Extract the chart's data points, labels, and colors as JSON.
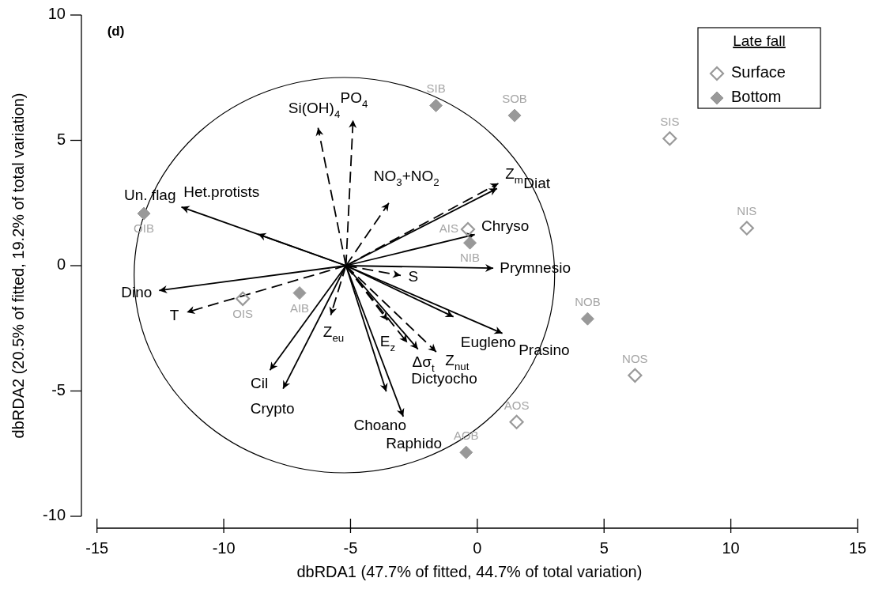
{
  "chart_data": {
    "type": "scatter",
    "title": "(d)",
    "xlabel": "dbRDA1 (47.7% of fitted, 44.7% of total variation)",
    "ylabel": "dbRDA2 (20.5% of fitted, 19.2% of total variation)",
    "xlim": [
      -15,
      15
    ],
    "ylim": [
      -10,
      10
    ],
    "xticks": [
      -15,
      -10,
      -5,
      0,
      5,
      10,
      15
    ],
    "yticks": [
      -10,
      -5,
      0,
      5,
      10
    ],
    "legend": "top right",
    "legend_title": "Late fall",
    "series": [
      {
        "name": "Surface",
        "marker": "diamond",
        "color": "#999999",
        "x": [
          7.59,
          10.63,
          -0.37,
          -9.25,
          6.22,
          1.55
        ],
        "values": [
          5.07,
          1.5,
          1.45,
          -1.32,
          -4.38,
          -6.24
        ],
        "value_labels": [
          "SIS",
          "NIS",
          "AIS",
          "OIS",
          "NOS",
          "AOS"
        ]
      },
      {
        "name": "Bottom",
        "marker": "diamond",
        "color": "#999999",
        "x": [
          -1.63,
          1.47,
          -13.15,
          -0.29,
          -7.01,
          4.35,
          -0.44
        ],
        "values": [
          6.39,
          5.99,
          2.08,
          0.91,
          -1.09,
          -2.12,
          -7.45
        ],
        "value_labels": [
          "SIB",
          "SOB",
          "OIB",
          "NIB",
          "AIB",
          "NOB",
          "AOB"
        ]
      },
      {
        "type": "line",
        "color": "#000000",
        "line_style": "solid",
        "x": [
          -5.18,
          -11.67
        ],
        "values": [
          0,
          2.34
        ]
      },
      {
        "type": "line",
        "color": "#000000",
        "line_style": "solid",
        "x": [
          -5.18,
          -8.65
        ],
        "values": [
          0,
          1.26
        ]
      },
      {
        "type": "line",
        "color": "#000000",
        "line_style": "dashed",
        "x": [
          -5.18,
          -6.28
        ],
        "values": [
          0,
          5.5
        ]
      },
      {
        "type": "line",
        "color": "#000000",
        "line_style": "dashed",
        "x": [
          -5.18,
          -4.9
        ],
        "values": [
          0,
          5.81
        ]
      },
      {
        "type": "line",
        "color": "#000000",
        "line_style": "dashed",
        "x": [
          -5.18,
          -3.49
        ],
        "values": [
          0,
          2.5
        ]
      },
      {
        "type": "line",
        "color": "#000000",
        "line_style": "dashed",
        "x": [
          -5.18,
          0.83
        ],
        "values": [
          0,
          3.28
        ]
      },
      {
        "type": "line",
        "color": "#000000",
        "line_style": "solid",
        "x": [
          -5.18,
          0.78
        ],
        "values": [
          0,
          3.08
        ]
      },
      {
        "type": "line",
        "color": "#000000",
        "line_style": "solid",
        "x": [
          -5.18,
          -0.1
        ],
        "values": [
          0,
          1.24
        ]
      },
      {
        "type": "line",
        "color": "#000000",
        "line_style": "solid",
        "x": [
          -5.18,
          0.63
        ],
        "values": [
          0,
          -0.1
        ]
      },
      {
        "type": "line",
        "color": "#000000",
        "line_style": "dashed",
        "x": [
          -5.18,
          -3.02
        ],
        "values": [
          0,
          -0.39
        ]
      },
      {
        "type": "line",
        "color": "#000000",
        "line_style": "solid",
        "x": [
          -5.18,
          -0.94
        ],
        "values": [
          0,
          -2.04
        ]
      },
      {
        "type": "line",
        "color": "#000000",
        "line_style": "solid",
        "x": [
          -5.18,
          0.99
        ],
        "values": [
          0,
          -2.7
        ]
      },
      {
        "type": "line",
        "color": "#000000",
        "line_style": "solid",
        "x": [
          -5.18,
          -12.55
        ],
        "values": [
          0,
          -0.99
        ]
      },
      {
        "type": "line",
        "color": "#000000",
        "line_style": "dashed",
        "x": [
          -5.18,
          -11.46
        ],
        "values": [
          0,
          -1.86
        ]
      },
      {
        "type": "line",
        "color": "#000000",
        "line_style": "solid",
        "x": [
          -5.18,
          -8.18
        ],
        "values": [
          0,
          -4.17
        ]
      },
      {
        "type": "line",
        "color": "#000000",
        "line_style": "solid",
        "x": [
          -5.18,
          -7.66
        ],
        "values": [
          0,
          -4.91
        ]
      },
      {
        "type": "line",
        "color": "#000000",
        "line_style": "dashed",
        "x": [
          -5.18,
          -5.78
        ],
        "values": [
          0,
          -1.97
        ]
      },
      {
        "type": "line",
        "color": "#000000",
        "line_style": "dashed",
        "x": [
          -5.18,
          -3.54
        ],
        "values": [
          0,
          -2.18
        ]
      },
      {
        "type": "line",
        "color": "#000000",
        "line_style": "dashed",
        "x": [
          -5.18,
          -2.76
        ],
        "values": [
          0,
          -3.07
        ]
      },
      {
        "type": "line",
        "color": "#000000",
        "line_style": "solid",
        "x": [
          -5.18,
          -2.34
        ],
        "values": [
          0,
          -3.33
        ]
      },
      {
        "type": "line",
        "color": "#000000",
        "line_style": "dashed",
        "x": [
          -5.18,
          -1.62
        ],
        "values": [
          0,
          -3.44
        ]
      },
      {
        "type": "line",
        "color": "#000000",
        "line_style": "solid",
        "x": [
          -5.18,
          -3.59
        ],
        "values": [
          0,
          -5.02
        ]
      },
      {
        "type": "line",
        "color": "#000000",
        "line_style": "solid",
        "x": [
          -5.18,
          -2.92
        ],
        "values": [
          0,
          -6.02
        ]
      }
    ],
    "annotations": [
      {
        "text": "Un. flag",
        "x": -11.67,
        "y": 2.34
      },
      {
        "text": "Het.protists",
        "x": -8.65,
        "y": 1.26
      },
      {
        "text": "Si(OH)$_{4}$",
        "x": -6.28,
        "y": 5.5
      },
      {
        "text": "PO$_{4}$",
        "x": -4.9,
        "y": 5.81
      },
      {
        "text": "NO$_{3}$+NO$_{2}$",
        "x": -3.49,
        "y": 2.5
      },
      {
        "text": "Z$_{m}$",
        "x": 0.83,
        "y": 3.28
      },
      {
        "text": "Diat",
        "x": 0.78,
        "y": 3.08
      },
      {
        "text": "Chryso",
        "x": -0.1,
        "y": 1.24
      },
      {
        "text": "Prymnesio",
        "x": 0.63,
        "y": -0.1
      },
      {
        "text": "S",
        "x": -3.02,
        "y": -0.39
      },
      {
        "text": "Eugleno",
        "x": -0.94,
        "y": -2.04
      },
      {
        "text": "Prasino",
        "x": 0.99,
        "y": -2.7
      },
      {
        "text": "Dino",
        "x": -12.55,
        "y": -0.99
      },
      {
        "text": "T",
        "x": -11.46,
        "y": -1.86
      },
      {
        "text": "Cil",
        "x": -8.18,
        "y": -4.17
      },
      {
        "text": "Crypto",
        "x": -7.66,
        "y": -4.91
      },
      {
        "text": "Z$_{eu}$",
        "x": -5.78,
        "y": -1.97
      },
      {
        "text": "E$_{z}$",
        "x": -3.54,
        "y": -2.18
      },
      {
        "text": "Δσ$_{t}$",
        "x": -2.76,
        "y": -3.07
      },
      {
        "text": "Dictyocho",
        "x": -2.34,
        "y": -3.33
      },
      {
        "text": "Z$_{nut}$",
        "x": -1.62,
        "y": -3.44
      },
      {
        "text": "Choano",
        "x": -3.59,
        "y": -5.02
      },
      {
        "text": "Raphido",
        "x": -2.92,
        "y": -6.02
      }
    ]
  }
}
